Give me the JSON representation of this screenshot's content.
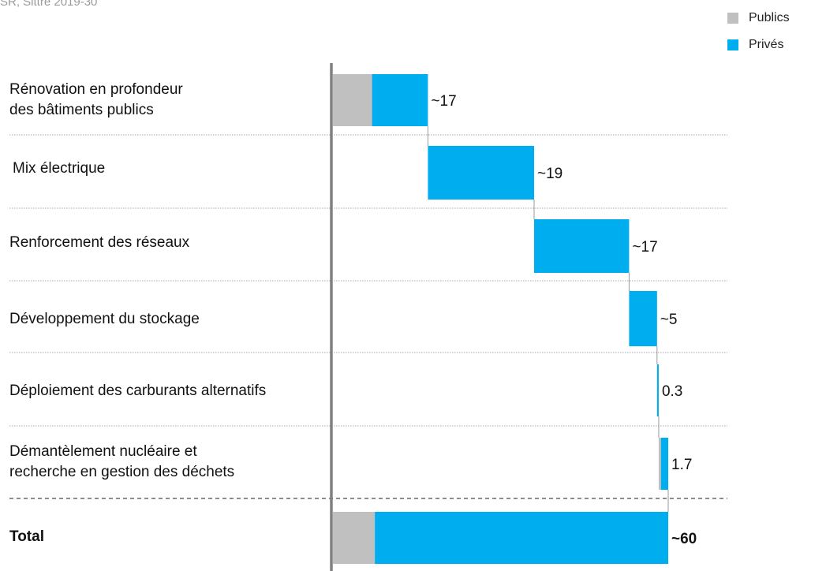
{
  "source_note": "SR, Sittre 2019-30",
  "legend": [
    {
      "label": "Publics",
      "color": "#c0c0c0"
    },
    {
      "label": "Privés",
      "color": "#00adef"
    }
  ],
  "chart_data": {
    "type": "bar",
    "categories": [
      "Rénovation en profondeur\ndes bâtiments publics",
      "Mix électrique",
      "Renforcement des réseaux",
      "Développement du stockage",
      "Déploiement des carburants alternatifs",
      "Démantèlement nucléaire et\nrecherche en gestion des déchets",
      "Total"
    ],
    "series": [
      {
        "name": "Publics",
        "color": "#c0c0c0",
        "values": [
          7,
          0,
          0,
          0,
          0,
          0.4,
          7.5
        ]
      },
      {
        "name": "Privés",
        "color": "#00adef",
        "values": [
          10,
          19,
          17,
          5,
          0.3,
          1.3,
          52.5
        ]
      }
    ],
    "data_labels": [
      "~17",
      "~19",
      "~17",
      "~5",
      "0.3",
      "1.7",
      "~60"
    ],
    "totals": [
      17,
      19,
      17,
      5,
      0.3,
      1.7,
      60
    ],
    "waterfall": true,
    "total_index": 6,
    "xlim": [
      0,
      60
    ],
    "legend_position": "top-right"
  },
  "colors": {
    "publics": "#c0c0c0",
    "prives": "#00adef",
    "axis": "#808080",
    "grid": "#a8a8a8",
    "connector": "#999999"
  }
}
